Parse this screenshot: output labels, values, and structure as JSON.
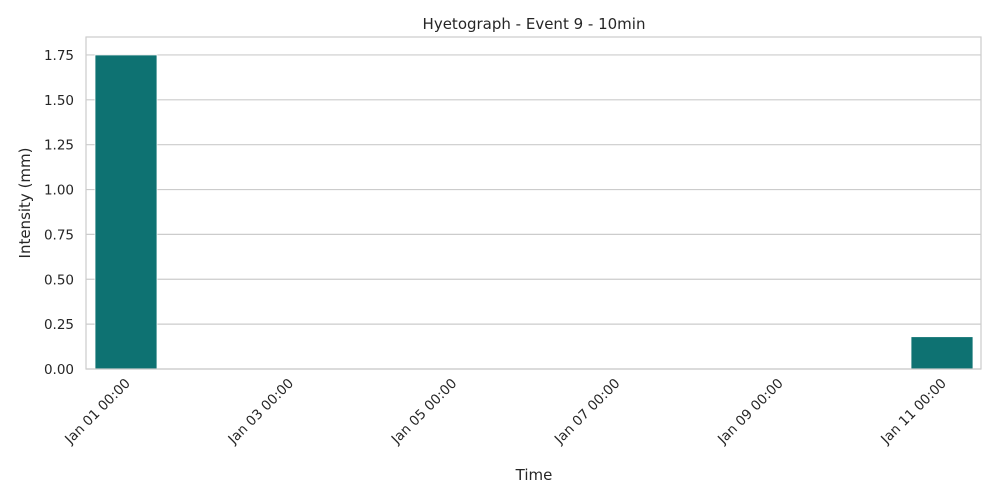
{
  "chart_data": {
    "type": "bar",
    "title": "Hyetograph - Event 9 - 10min",
    "xlabel": "Time",
    "ylabel": "Intensity (mm)",
    "ylim": [
      0,
      1.85
    ],
    "grid": true,
    "bar_color": "#0e7272",
    "x_tick_labels": [
      "Jan 01 00:00",
      "Jan 03 00:00",
      "Jan 05 00:00",
      "Jan 07 00:00",
      "Jan 09 00:00",
      "Jan 11 00:00"
    ],
    "y_tick_labels": [
      "0.00",
      "0.25",
      "0.50",
      "0.75",
      "1.00",
      "1.25",
      "1.50",
      "1.75"
    ],
    "bars": [
      {
        "tick": "Jan 01 00:00",
        "value": 1.75
      },
      {
        "tick": "Jan 11 00:00",
        "value": 0.18
      }
    ]
  }
}
